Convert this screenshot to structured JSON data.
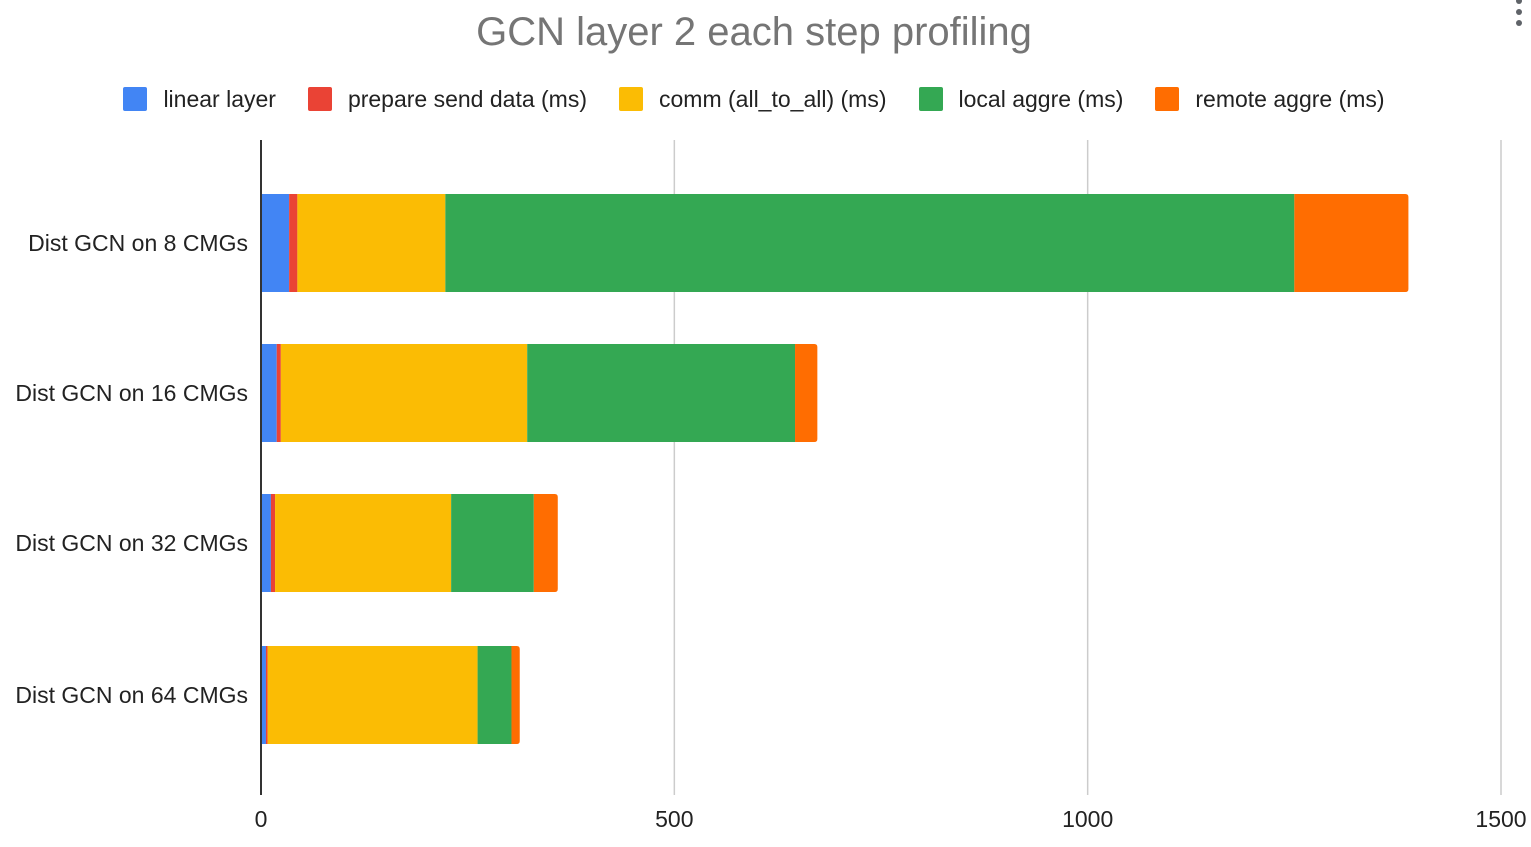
{
  "chart_data": {
    "type": "bar",
    "orientation": "horizontal",
    "stacked": true,
    "title": "GCN layer 2 each step profiling",
    "categories": [
      "Dist GCN on 8 CMGs",
      "Dist GCN on 16 CMGs",
      "Dist GCN on 32 CMGs",
      "Dist GCN on 64 CMGs"
    ],
    "series": [
      {
        "name": "linear layer",
        "color": "#4285F4",
        "values": [
          34,
          19,
          12,
          6
        ]
      },
      {
        "name": "prepare send data (ms)",
        "color": "#EA4335",
        "values": [
          10,
          5,
          5,
          2
        ]
      },
      {
        "name": "comm (all_to_all) (ms)",
        "color": "#FBBC04",
        "values": [
          179,
          298,
          213,
          254
        ]
      },
      {
        "name": "local aggre (ms)",
        "color": "#34A853",
        "values": [
          1027,
          324,
          100,
          41
        ]
      },
      {
        "name": "remote aggre (ms)",
        "color": "#FF6D01",
        "values": [
          138,
          27,
          29,
          10
        ]
      }
    ],
    "xticks": [
      "0",
      "500",
      "1000",
      "1500"
    ],
    "xlim": [
      0,
      1500
    ],
    "grid": true,
    "legend_position": "top"
  },
  "menu": {
    "icon": "more-vert-icon"
  }
}
